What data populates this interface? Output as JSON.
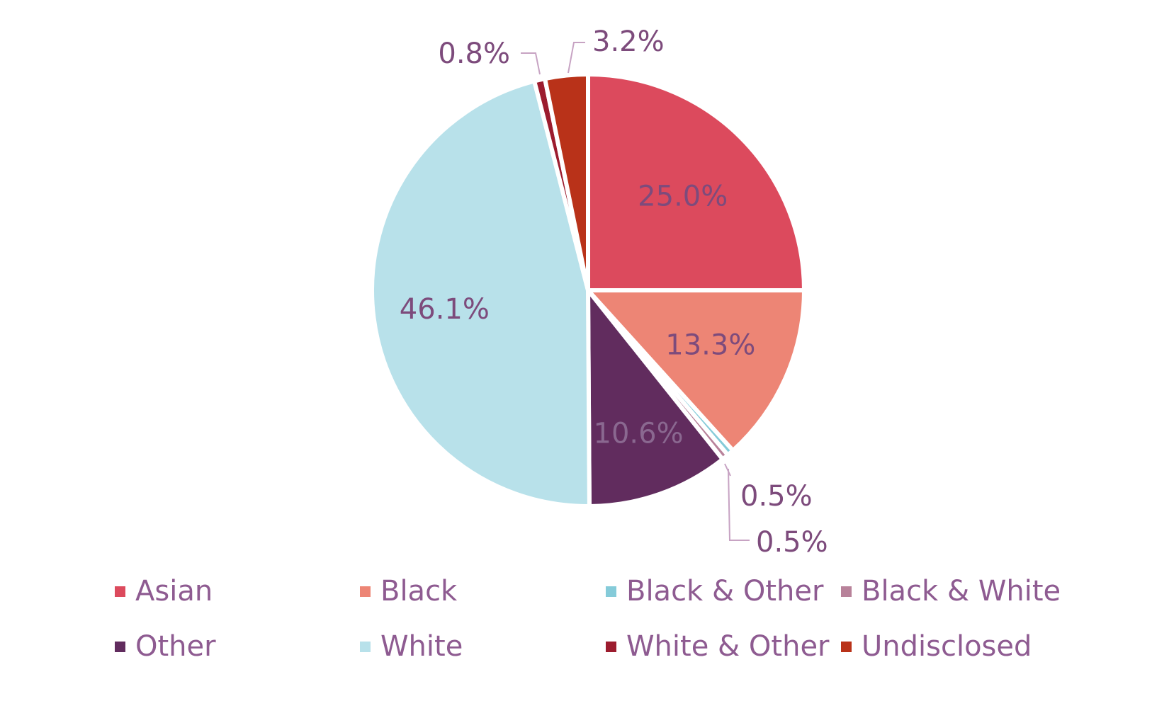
{
  "chart_data": {
    "type": "pie",
    "categories": [
      "Asian",
      "Black",
      "Black & Other",
      "Black & White",
      "Other",
      "White",
      "White & Other",
      "Undisclosed"
    ],
    "values": [
      25.0,
      13.3,
      0.5,
      0.5,
      10.6,
      46.1,
      0.8,
      3.2
    ],
    "data_labels": [
      "25.0%",
      "13.3%",
      "0.5%",
      "0.5%",
      "10.6%",
      "46.1%",
      "0.8%",
      "3.2%"
    ],
    "colors": [
      "#dc4a5d",
      "#ed8575",
      "#85cbd9",
      "#b8829a",
      "#612c5e",
      "#b8e1ea",
      "#9c1c2e",
      "#b93219"
    ],
    "label_colors": [
      "#7d4b7c",
      "#7d4b7c",
      "#7d4b7c",
      "#7d4b7c",
      "#8a6890",
      "#7d4b7c",
      "#7d4b7c",
      "#7d4b7c"
    ],
    "leader_line_color": "#c7a3c3",
    "legend_text_color": "#8e5b91",
    "start_angle_deg": 0,
    "direction": "clockwise",
    "legend_position": "bottom",
    "title": ""
  }
}
